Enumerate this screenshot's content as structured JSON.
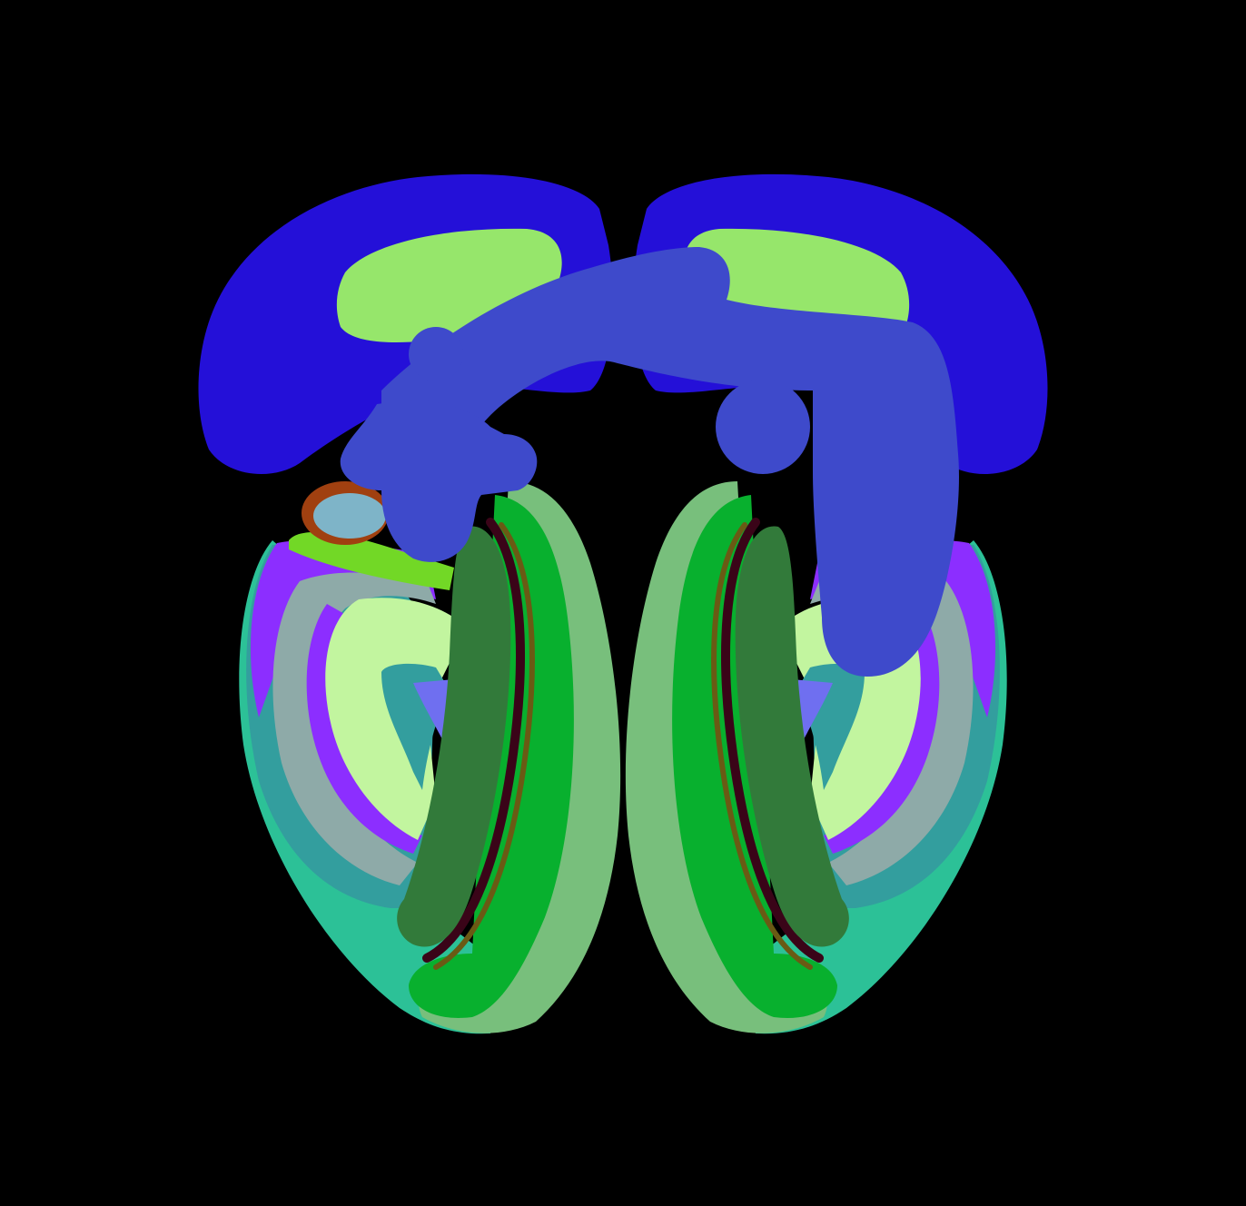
{
  "figure": {
    "kind": "colored brain-region segmentation rendering",
    "background": "#000000",
    "palette": {
      "upper_lobe_blue": "#2410d8",
      "upper_lobe_inner_green": "#96e66b",
      "overlay_tract_blue": "#3e4acb",
      "outer_rim_mint": "#2cc197",
      "teal_band": "#339e9e",
      "grey_band": "#8eaaa8",
      "violet_band": "#8c2eff",
      "pale_green_fill": "#c2f59f",
      "periwinkle_wedge": "#6f6ff0",
      "sage_band": "#78bf7c",
      "bright_green_band": "#08b02e",
      "dark_green_core": "#327a3a",
      "olive_line": "#6a5a14",
      "maroon_line": "#3a0418",
      "small_orange_ring": "#a04010",
      "small_lightblue_blob": "#7eb4c8",
      "small_lime_patch": "#72d826"
    }
  }
}
